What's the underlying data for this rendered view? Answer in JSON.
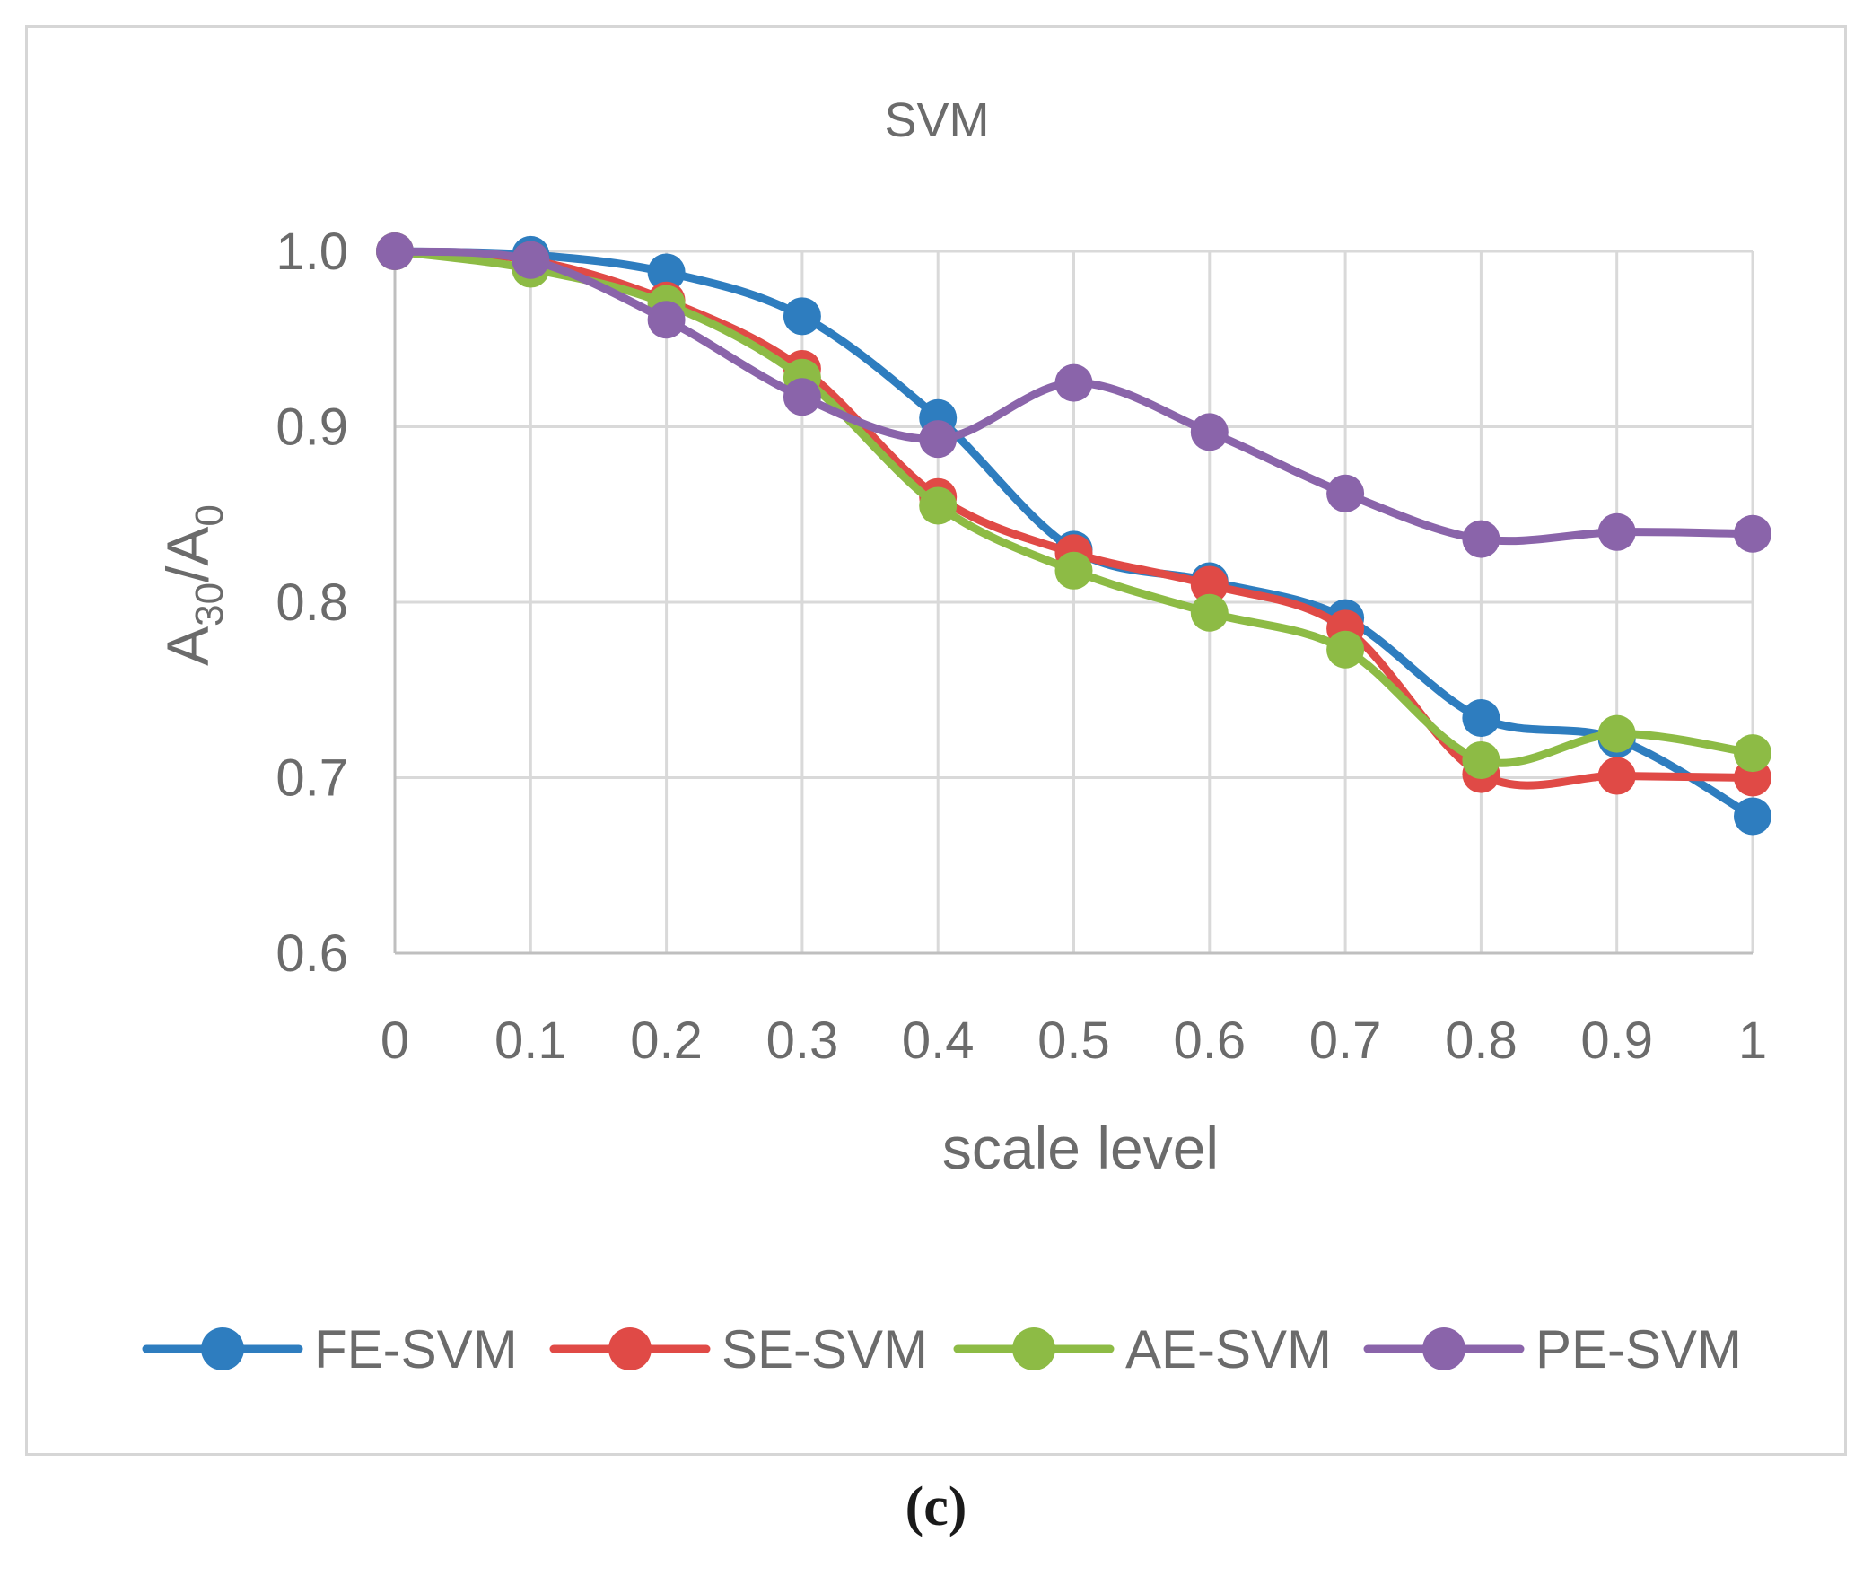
{
  "panel_label": "(c)",
  "chart_data": {
    "type": "line",
    "title": "SVM",
    "xlabel": "scale level",
    "ylabel": {
      "base": "A",
      "sub1": "30",
      "slash": "/",
      "base2": "A",
      "sub2": "0"
    },
    "x": [
      0,
      0.1,
      0.2,
      0.3,
      0.4,
      0.5,
      0.6,
      0.7,
      0.8,
      0.9,
      1
    ],
    "x_tick_labels": [
      "0",
      "0.1",
      "0.2",
      "0.3",
      "0.4",
      "0.5",
      "0.6",
      "0.7",
      "0.8",
      "0.9",
      "1"
    ],
    "ylim": [
      0.6,
      1.0
    ],
    "y_ticks": [
      0.6,
      0.7,
      0.8,
      0.9,
      1.0
    ],
    "y_tick_labels": [
      "0.6",
      "0.7",
      "0.8",
      "0.9",
      "1.0"
    ],
    "grid": true,
    "smooth": true,
    "legend_position": "bottom",
    "series": [
      {
        "name": "FE-SVM",
        "color": "#2e7dbf",
        "values": [
          1.0,
          0.998,
          0.988,
          0.963,
          0.905,
          0.83,
          0.812,
          0.791,
          0.734,
          0.722,
          0.678
        ]
      },
      {
        "name": "SE-SVM",
        "color": "#e04a46",
        "values": [
          1.0,
          0.995,
          0.972,
          0.933,
          0.86,
          0.828,
          0.81,
          0.785,
          0.702,
          0.701,
          0.7
        ]
      },
      {
        "name": "AE-SVM",
        "color": "#8dbb45",
        "values": [
          1.0,
          0.99,
          0.97,
          0.928,
          0.855,
          0.818,
          0.794,
          0.773,
          0.71,
          0.725,
          0.714
        ]
      },
      {
        "name": "PE-SVM",
        "color": "#8a64aa",
        "values": [
          1.0,
          0.995,
          0.961,
          0.917,
          0.893,
          0.925,
          0.897,
          0.862,
          0.836,
          0.84,
          0.839
        ]
      }
    ]
  }
}
